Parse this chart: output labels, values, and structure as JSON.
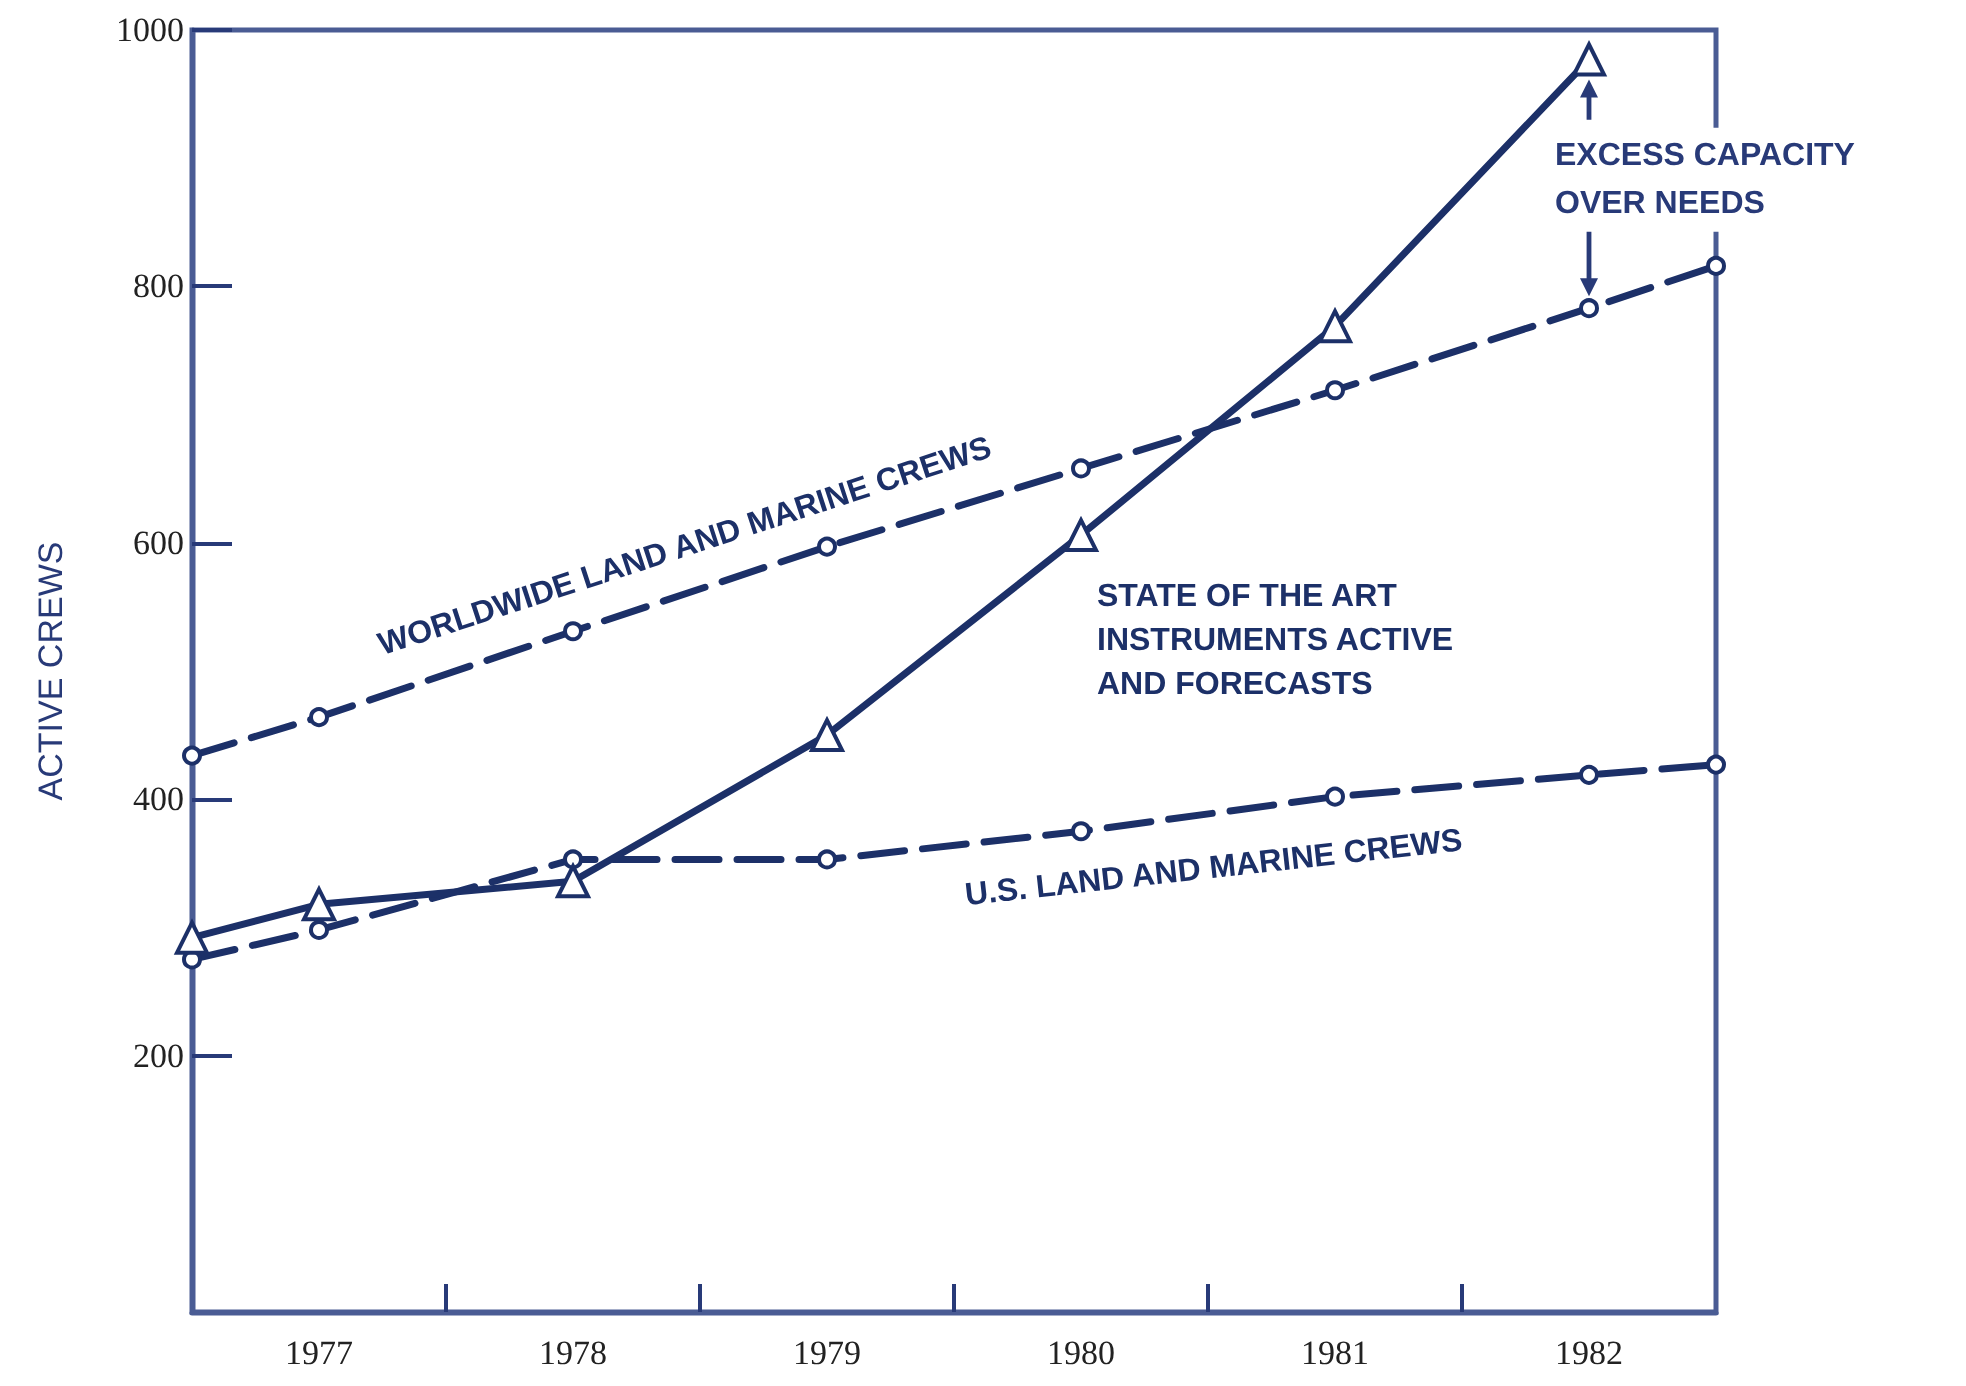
{
  "chart_data": {
    "type": "line",
    "ylabel": "ACTIVE CREWS",
    "xlim": [
      1976.5,
      1982.5
    ],
    "xticks": [
      {
        "value": 1977,
        "label": "1977"
      },
      {
        "value": 1977.5,
        "label": null
      },
      {
        "value": 1978,
        "label": "1978"
      },
      {
        "value": 1978.5,
        "label": null
      },
      {
        "value": 1979,
        "label": "1979"
      },
      {
        "value": 1979.5,
        "label": null
      },
      {
        "value": 1980,
        "label": "1980"
      },
      {
        "value": 1980.5,
        "label": null
      },
      {
        "value": 1981,
        "label": "1981"
      },
      {
        "value": 1981.5,
        "label": null
      },
      {
        "value": 1982,
        "label": "1982"
      }
    ],
    "ylim": [
      0,
      1000
    ],
    "yticks": [
      200,
      400,
      600,
      800,
      1000
    ],
    "grid": false,
    "legend": false,
    "series": [
      {
        "name": "WORLDWIDE LAND AND MARINE CREWS",
        "color": "#1c3068",
        "marker": "circle",
        "line_style": "dashed",
        "x": [
          1976.5,
          1977,
          1978,
          1979,
          1980,
          1981,
          1982,
          1982.5
        ],
        "values": [
          434,
          464,
          531,
          597,
          658,
          719,
          783,
          816
        ]
      },
      {
        "name": "STATE OF THE ART INSTRUMENTS ACTIVE AND FORECASTS",
        "color": "#1c3068",
        "marker": "triangle",
        "line_style": "solid",
        "x": [
          1976.5,
          1977,
          1978,
          1979,
          1980,
          1981,
          1982
        ],
        "values": [
          292,
          318,
          336,
          450,
          606,
          769,
          977
        ]
      },
      {
        "name": "U.S. LAND AND MARINE CREWS",
        "color": "#1c3068",
        "marker": "circle",
        "line_style": "dashed",
        "x": [
          1976.5,
          1977,
          1978,
          1979,
          1980,
          1981,
          1982,
          1982.5
        ],
        "values": [
          275,
          298,
          353,
          353,
          375,
          402,
          419,
          427
        ]
      }
    ],
    "annotations": [
      "EXCESS CAPACITY OVER NEEDS"
    ]
  }
}
